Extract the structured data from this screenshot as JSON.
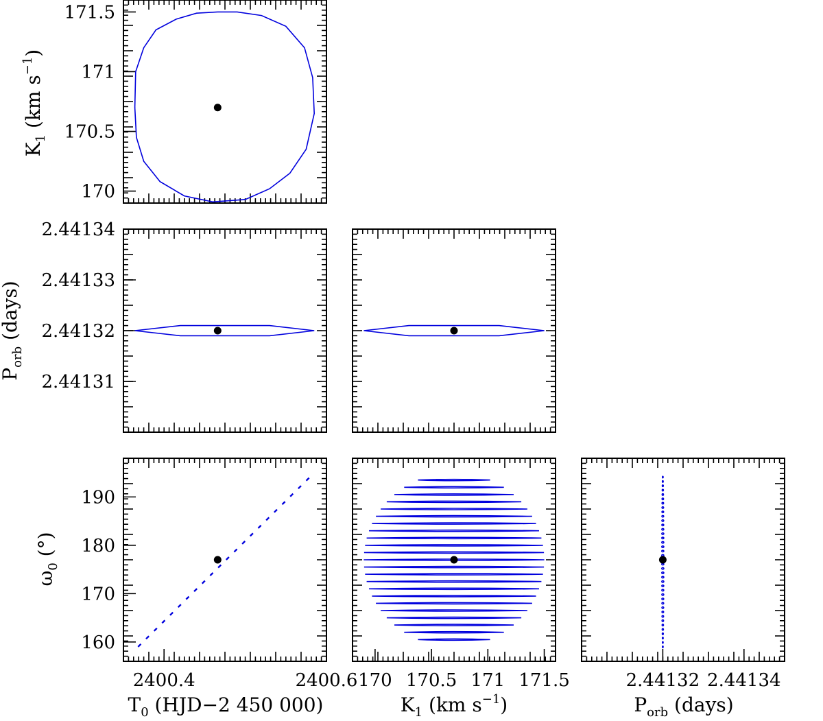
{
  "chart_data": [
    {
      "type": "scatter",
      "panel": "top-left",
      "xlabel": "",
      "ylabel": "K1 (km s^-1)",
      "xlim": [
        2400.35,
        2400.6
      ],
      "ylim": [
        169.9,
        171.6
      ],
      "yticks": [
        170,
        170.5,
        171,
        171.5
      ],
      "ytick_labels": [
        "170",
        "170.5",
        "171",
        "171.5"
      ],
      "best_fit": {
        "x": 2400.466,
        "y": 170.7
      },
      "contour_color": "#0000dd",
      "contour": [
        [
          2400.466,
          171.5
        ],
        [
          2400.44,
          171.49
        ],
        [
          2400.415,
          171.44
        ],
        [
          2400.39,
          171.35
        ],
        [
          2400.375,
          171.2
        ],
        [
          2400.365,
          171.0
        ],
        [
          2400.364,
          170.7
        ],
        [
          2400.366,
          170.45
        ],
        [
          2400.375,
          170.25
        ],
        [
          2400.395,
          170.08
        ],
        [
          2400.425,
          169.96
        ],
        [
          2400.46,
          169.91
        ],
        [
          2400.5,
          169.93
        ],
        [
          2400.53,
          170.02
        ],
        [
          2400.555,
          170.15
        ],
        [
          2400.575,
          170.35
        ],
        [
          2400.585,
          170.65
        ],
        [
          2400.583,
          170.95
        ],
        [
          2400.573,
          171.2
        ],
        [
          2400.55,
          171.38
        ],
        [
          2400.52,
          171.47
        ],
        [
          2400.49,
          171.5
        ],
        [
          2400.466,
          171.5
        ]
      ]
    },
    {
      "type": "scatter",
      "panel": "middle-left",
      "xlabel": "",
      "ylabel": "Porb (days)",
      "xlim": [
        2400.35,
        2400.6
      ],
      "ylim": [
        2.4413,
        2.44134
      ],
      "yticks": [
        2.44131,
        2.44132,
        2.44133,
        2.44134
      ],
      "ytick_labels": [
        "2.44131",
        "2.44132",
        "2.44133",
        "2.44134"
      ],
      "best_fit": {
        "x": 2400.466,
        "y": 2.44132
      },
      "contour": [
        [
          2400.364,
          2.44132
        ],
        [
          2400.42,
          2.441321
        ],
        [
          2400.466,
          2.441321
        ],
        [
          2400.53,
          2.441321
        ],
        [
          2400.585,
          2.44132
        ],
        [
          2400.53,
          2.441319
        ],
        [
          2400.466,
          2.441319
        ],
        [
          2400.42,
          2.441319
        ],
        [
          2400.364,
          2.44132
        ]
      ]
    },
    {
      "type": "scatter",
      "panel": "middle-center",
      "xlabel": "",
      "ylabel": "",
      "xlim": [
        169.8,
        171.6
      ],
      "ylim": [
        2.4413,
        2.44134
      ],
      "best_fit": {
        "x": 170.7,
        "y": 2.44132
      },
      "contour": [
        [
          169.9,
          2.44132
        ],
        [
          170.3,
          2.441321
        ],
        [
          170.7,
          2.441321
        ],
        [
          171.1,
          2.441321
        ],
        [
          171.5,
          2.44132
        ],
        [
          171.1,
          2.441319
        ],
        [
          170.7,
          2.441319
        ],
        [
          170.3,
          2.441319
        ],
        [
          169.9,
          2.44132
        ]
      ]
    },
    {
      "type": "scatter",
      "panel": "bottom-left",
      "xlabel": "T0 (HJD−2 450 000)",
      "ylabel": "ω0 (°)",
      "xlim": [
        2400.35,
        2400.6
      ],
      "ylim": [
        156,
        198
      ],
      "xticks": [
        2400.4,
        2400.6
      ],
      "xtick_labels": [
        "2400.4",
        "2400.6"
      ],
      "yticks": [
        160,
        170,
        180,
        190
      ],
      "ytick_labels": [
        "160",
        "170",
        "180",
        "190"
      ],
      "best_fit": {
        "x": 2400.466,
        "y": 177
      },
      "line": {
        "x0": 2400.368,
        "y0": 159,
        "x1": 2400.585,
        "y1": 195
      }
    },
    {
      "type": "scatter",
      "panel": "bottom-center",
      "xlabel": "K1 (km s^-1)",
      "ylabel": "",
      "xlim": [
        169.8,
        171.6
      ],
      "ylim": [
        156,
        198
      ],
      "xticks": [
        170,
        170.5,
        171,
        171.5
      ],
      "xtick_labels": [
        "170",
        "170.5",
        "171",
        "171.5"
      ],
      "best_fit": {
        "x": 170.7,
        "y": 177
      },
      "k_center": 170.7,
      "k_radius": 0.8,
      "w_center": 177,
      "w_radius": 18
    },
    {
      "type": "scatter",
      "panel": "bottom-right",
      "xlabel": "Porb (days)",
      "ylabel": "",
      "xlim": [
        2.4413,
        2.44135
      ],
      "ylim": [
        156,
        198
      ],
      "xticks": [
        2.44132,
        2.44134
      ],
      "xtick_labels": [
        "2.44132",
        "2.44134"
      ],
      "best_fit": {
        "x": 2.44132,
        "y": 177
      },
      "line_x": 2.44132,
      "line_ylim": [
        159,
        195
      ]
    }
  ],
  "labels": {
    "tl_ylabel_main": "K",
    "tl_ylabel_sub": "1",
    "tl_ylabel_rest": " (km s",
    "tl_ylabel_sup": "−1",
    "tl_ylabel_end": ")",
    "ml_ylabel_main": "P",
    "ml_ylabel_sub": "orb",
    "ml_ylabel_rest": " (days)",
    "bl_ylabel_main": "ω",
    "bl_ylabel_sub": "0",
    "bl_ylabel_rest": " (°)",
    "bl_xlabel_main": "T",
    "bl_xlabel_sub": "0",
    "bl_xlabel_rest": " (HJD−2 450 000)",
    "bc_xlabel_main": "K",
    "bc_xlabel_sub": "1",
    "bc_xlabel_rest": " (km s",
    "bc_xlabel_sup": "−1",
    "bc_xlabel_end": ")",
    "br_xlabel_main": "P",
    "br_xlabel_sub": "orb",
    "br_xlabel_rest": " (days)"
  }
}
